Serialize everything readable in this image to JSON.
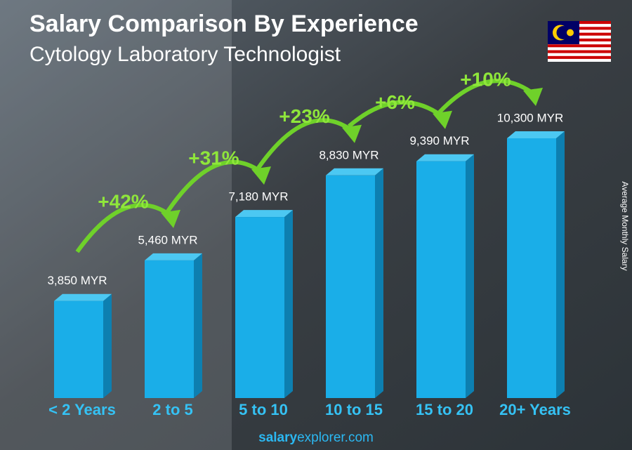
{
  "chart_data": {
    "type": "bar",
    "title": "Salary Comparison By Experience",
    "subtitle": "Cytology Laboratory Technologist",
    "y_axis_label": "Average Monthly Salary",
    "categories": [
      "< 2 Years",
      "2 to 5",
      "5 to 10",
      "10 to 15",
      "15 to 20",
      "20+ Years"
    ],
    "values": [
      3850,
      5460,
      7180,
      8830,
      9390,
      10300
    ],
    "value_labels": [
      "3,850 MYR",
      "5,460 MYR",
      "7,180 MYR",
      "8,830 MYR",
      "9,390 MYR",
      "10,300 MYR"
    ],
    "color": "#1aaee8",
    "changes": [
      {
        "value": 42,
        "label": "+42%"
      },
      {
        "value": 31,
        "label": "+31%"
      },
      {
        "value": 23,
        "label": "+23%"
      },
      {
        "value": 6,
        "label": "+6%"
      },
      {
        "value": 10,
        "label": "+10%"
      }
    ],
    "footer": {
      "bold": "salary",
      "rest": "explorer.com"
    }
  }
}
